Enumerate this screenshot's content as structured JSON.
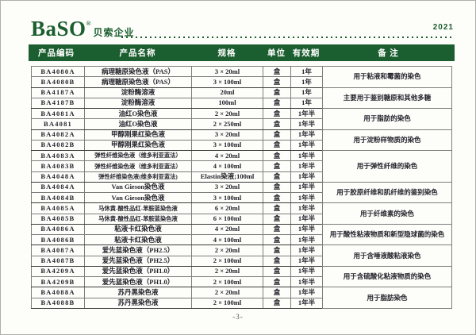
{
  "colors": {
    "brand_green": "#1b5e2f",
    "header_text": "#ffffff"
  },
  "header": {
    "logo_text": "BaSO",
    "registered_mark": "®",
    "company_name": "贝索企业",
    "year": "2021"
  },
  "table": {
    "columns": [
      "产品编码",
      "产品名称",
      "规格",
      "单位",
      "有效期",
      "备 注"
    ],
    "rows": [
      {
        "code": "BA4080A",
        "name": "病理糖原染色液（PAS）",
        "spec": "3 × 20ml",
        "unit": "盒",
        "validity": "1年",
        "remark": "用于粘液和霉菌的染色",
        "remark_span": 2
      },
      {
        "code": "BA4080B",
        "name": "病理糖原染色液（PAS）",
        "spec": "3 × 100ml",
        "unit": "盒",
        "validity": "1年",
        "group_end": true
      },
      {
        "code": "BA4187A",
        "name": "淀粉酶溶液",
        "spec": "20ml",
        "unit": "盒",
        "validity": "1年",
        "remark": "主要用于鉴别糖原和其他多糖",
        "remark_span": 2
      },
      {
        "code": "BA4187B",
        "name": "淀粉酶溶液",
        "spec": "100ml",
        "unit": "盒",
        "validity": "1年",
        "group_end": true
      },
      {
        "code": "BA4081A",
        "name": "油红O染色液",
        "spec": "2 × 20ml",
        "unit": "盒",
        "validity": "1年半",
        "remark": "用于脂肪的染色",
        "remark_span": 2
      },
      {
        "code": "BA4081",
        "name": "油红O染色液",
        "spec": "2 × 250ml",
        "unit": "盒",
        "validity": "1年半",
        "group_end": true
      },
      {
        "code": "BA4082A",
        "name": "甲醇刚果红染色液",
        "spec": "3 × 20ml",
        "unit": "盒",
        "validity": "1年半",
        "remark": "用于淀粉样物质的染色",
        "remark_span": 2
      },
      {
        "code": "BA4082B",
        "name": "甲醇刚果红染色液",
        "spec": "3 × 100ml",
        "unit": "盒",
        "validity": "1年半",
        "group_end": true
      },
      {
        "code": "BA4083A",
        "name": "弹性纤维染色液（维多利亚蓝法）",
        "spec": "4 × 20ml",
        "unit": "盒",
        "validity": "1年半",
        "remark": "用于弹性纤维的染色",
        "remark_span": 3
      },
      {
        "code": "BA4083B",
        "name": "弹性纤维染色液（维多利亚蓝法）",
        "spec": "4 × 100ml",
        "unit": "盒",
        "validity": "1年半"
      },
      {
        "code": "BA4048A",
        "name": "弹性纤维染色液(维多利亚蓝法)",
        "spec": "Elastin染液;100ml",
        "unit": "盒",
        "validity": "1年半",
        "group_end": true
      },
      {
        "code": "BA4084A",
        "name": "Van Gieson染色液",
        "spec": "3 × 20ml",
        "unit": "盒",
        "validity": "1年半",
        "remark": "用于胶原纤维和肌纤维的鉴别染色",
        "remark_span": 2
      },
      {
        "code": "BA4084B",
        "name": "Van Gieson染色液",
        "spec": "3 × 100ml",
        "unit": "盒",
        "validity": "1年半",
        "group_end": true
      },
      {
        "code": "BA4085A",
        "name": "马休黄-酸性品红-苯胺蓝染色液",
        "spec": "6 × 20ml",
        "unit": "盒",
        "validity": "1年半",
        "remark": "用于纤维素的染色",
        "remark_span": 2
      },
      {
        "code": "BA4085B",
        "name": "马休黄-酸性品红-苯胺蓝染色液",
        "spec": "6 × 100ml",
        "unit": "盒",
        "validity": "1年半",
        "group_end": true
      },
      {
        "code": "BA4086A",
        "name": "粘液卡红染色液",
        "spec": "4 × 20ml",
        "unit": "盒",
        "validity": "1年半",
        "remark": "用于酸性粘液物质和新型隐球菌的染色",
        "remark_span": 2
      },
      {
        "code": "BA4086B",
        "name": "粘液卡红染色液",
        "spec": "4 × 100ml",
        "unit": "盒",
        "validity": "1年半",
        "group_end": true
      },
      {
        "code": "BA4087A",
        "name": "爱先蓝染色液（PH2.5）",
        "spec": "2 × 20ml",
        "unit": "盒",
        "validity": "1年半",
        "remark": "用于含唾液酸粘液染色",
        "remark_span": 2
      },
      {
        "code": "BA4087B",
        "name": "爱先蓝染色液（PH2.5）",
        "spec": "2 × 100ml",
        "unit": "盒",
        "validity": "1年半",
        "group_end": true
      },
      {
        "code": "BA4209A",
        "name": "爱先蓝染色液（PH1.0）",
        "spec": "2 × 20ml",
        "unit": "盒",
        "validity": "1年半",
        "remark": "用于含硫酸化粘液物质的染色",
        "remark_span": 2
      },
      {
        "code": "BA4209B",
        "name": "爱先蓝染色液（PH1.0）",
        "spec": "2 × 100ml",
        "unit": "盒",
        "validity": "1年半",
        "group_end": true
      },
      {
        "code": "BA4088A",
        "name": "苏丹黑染色液",
        "spec": "2 × 20ml",
        "unit": "盒",
        "validity": "1年半",
        "remark": "用于脂肪染色",
        "remark_span": 2
      },
      {
        "code": "BA4088B",
        "name": "苏丹黑染色液",
        "spec": "2 × 100ml",
        "unit": "盒",
        "validity": "1年半",
        "group_end": true
      }
    ]
  },
  "footer": {
    "page_number": "-3-"
  }
}
